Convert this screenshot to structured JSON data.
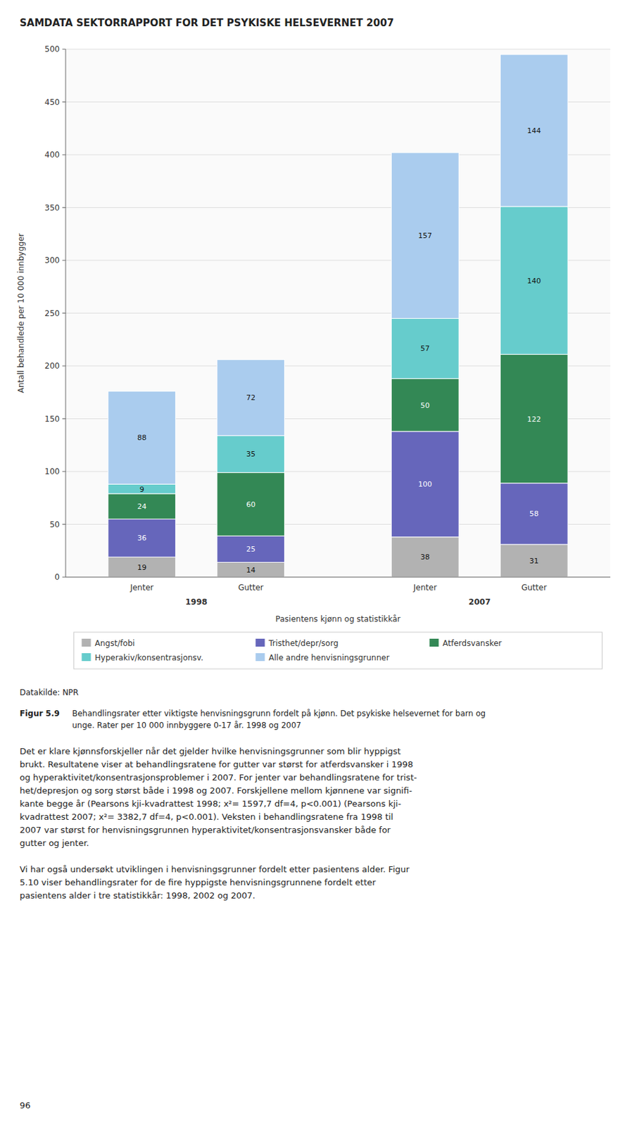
{
  "chart_data": {
    "type": "bar",
    "stacked": true,
    "title": "SAMDATA SEKTORRAPPORT FOR DET PSYKISKE HELSEVERNET 2007",
    "y_label": "Antall behandlede per 10 000 innbygger",
    "x_label": "Pasientens kjønn og statistikkår",
    "categories": [
      "Jenter",
      "Gutter",
      "Jenter",
      "Gutter"
    ],
    "category_groups": [
      "1998",
      "1998",
      "2007",
      "2007"
    ],
    "series": [
      {
        "name": "Angst/fobi",
        "color": "#b2b2b2",
        "values": [
          19,
          14,
          38,
          31
        ]
      },
      {
        "name": "Tristhet/depr/sorg",
        "color": "#6666bb",
        "values": [
          36,
          25,
          100,
          58
        ]
      },
      {
        "name": "Atferdsvansker",
        "color": "#338855",
        "values": [
          24,
          60,
          50,
          122
        ]
      },
      {
        "name": "Hyperakiv/konsentrasjonsv.",
        "color": "#66cccc",
        "values": [
          9,
          35,
          57,
          140
        ]
      },
      {
        "name": "Alle andre henvisningsgrunner",
        "color": "#aaccee",
        "values": [
          88,
          72,
          157,
          144
        ]
      }
    ],
    "ylim": [
      0,
      500
    ],
    "yticks": [
      0,
      50,
      100,
      150,
      200,
      250,
      300,
      350,
      400,
      450,
      500
    ],
    "grid": true,
    "legend": "bottom",
    "data_labels": true
  },
  "source": "Datakilde: NPR",
  "figure_caption_bold": "Figur 5.9",
  "figure_caption": "Behandlingsrater etter viktigste henvisningsgrunn fordelt på kjønn. Det psykiske helsevernet for barn og\nunge. Rater per 10 000 innbyggere 0-17 år. 1998 og 2007",
  "body_text": "Det er klare kjønnsforskjeller når det gjelder hvilke henvisningsgrunner som blir hyppigst\nbrukt. Resultatene viser at behandlingsratene for gutter var størst for atferdsvansker i 1998\nog hyperaktivitet/konsentrasjonsproblemer i 2007. For jenter var behandlingsratene for trist-\nhet/depresjon og sorg størst både i 1998 og 2007. Forskjellene mellom kjønnene var signifi-\nkante begge år (Pearsons kji-kvadrattest 1998; x²= 1597,7 df=4, p<0.001) (Pearsons kji-\nkvadrattest 2007; x²= 3382,7 df=4, p<0.001). Veksten i behandlingsratene fra 1998 til\n2007 var størst for henvisningsgrunnen hyperaktivitet/konsentrasjonsvansker både for\ngutter og jenter.",
  "body_text2": "Vi har også undersøkt utviklingen i henvisningsgrunner fordelt etter pasientens alder. Figur\n5.10 viser behandlingsrater for de fire hyppigste henvisningsgrunnene fordelt etter\npasientens alder i tre statistikkår: 1998, 2002 og 2007.",
  "page_number": "96"
}
